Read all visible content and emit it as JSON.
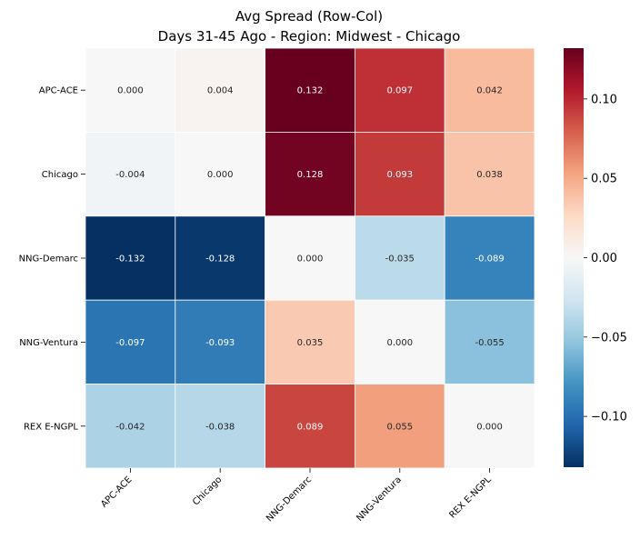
{
  "chart_data": {
    "type": "heatmap",
    "title": "Avg Spread (Row-Col)",
    "subtitle": "Days 31-45 Ago - Region: Midwest - Chicago",
    "rows": [
      "APC-ACE",
      "Chicago",
      "NNG-Demarc",
      "NNG-Ventura",
      "REX E-NGPL"
    ],
    "columns": [
      "APC-ACE",
      "Chicago",
      "NNG-Demarc",
      "NNG-Ventura",
      "REX E-NGPL"
    ],
    "values": [
      [
        0.0,
        0.004,
        0.132,
        0.097,
        0.042
      ],
      [
        -0.004,
        0.0,
        0.128,
        0.093,
        0.038
      ],
      [
        -0.132,
        -0.128,
        0.0,
        -0.035,
        -0.089
      ],
      [
        -0.097,
        -0.093,
        0.035,
        0.0,
        -0.055
      ],
      [
        -0.042,
        -0.038,
        0.089,
        0.055,
        0.0
      ]
    ],
    "cell_labels": [
      [
        "0.000",
        "0.004",
        "0.132",
        "0.097",
        "0.042"
      ],
      [
        "-0.004",
        "0.000",
        "0.128",
        "0.093",
        "0.038"
      ],
      [
        "-0.132",
        "-0.128",
        "0.000",
        "-0.035",
        "-0.089"
      ],
      [
        "-0.097",
        "-0.093",
        "0.035",
        "0.000",
        "-0.055"
      ],
      [
        "-0.042",
        "-0.038",
        "0.089",
        "0.055",
        "0.000"
      ]
    ],
    "colormap": "RdBu_r",
    "vmin": -0.132,
    "vmax": 0.132,
    "colorbar": {
      "ticks": [
        0.1,
        0.05,
        0.0,
        -0.05,
        -0.1
      ],
      "tick_labels": [
        "0.10",
        "0.05",
        "0.00",
        "−0.05",
        "−0.10"
      ]
    },
    "colors": {
      "negative_extreme": "#053061",
      "neutral": "#f7f7f7",
      "positive_extreme": "#67001f"
    },
    "grid": false
  }
}
